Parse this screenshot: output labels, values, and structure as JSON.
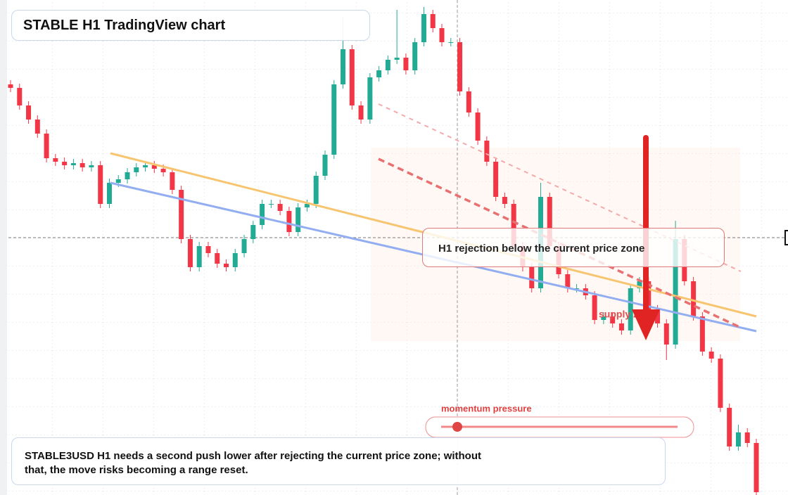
{
  "header": {
    "title": "STABLE H1 TradingView chart"
  },
  "annotation": {
    "text": "H1 rejection below the current price zone",
    "zone_label": "supply zone"
  },
  "slider": {
    "label": "momentum pressure"
  },
  "footer": {
    "text": "STABLE3USD H1 needs a second push lower after rejecting the current price zone; without that, the move risks becoming a range reset."
  },
  "chart_data": {
    "type": "candlestick",
    "ylim": [
      0,
      704
    ],
    "up_color": "#22ab94",
    "down_color": "#f23645",
    "open": [
      584,
      579,
      554,
      534,
      514,
      479,
      474,
      469,
      472,
      466,
      469,
      414,
      444,
      449,
      459,
      466,
      469,
      464,
      459,
      434,
      364,
      324,
      354,
      344,
      329,
      324,
      344,
      364,
      384,
      414,
      414,
      404,
      374,
      409,
      414,
      454,
      484,
      584,
      634,
      554,
      534,
      594,
      604,
      619,
      622,
      604,
      644,
      684,
      664,
      644,
      644,
      574,
      544,
      504,
      474,
      424,
      414,
      354,
      324,
      294,
      424,
      354,
      314,
      294,
      294,
      284,
      249,
      254,
      244,
      234,
      294,
      304,
      264,
      244,
      214,
      364,
      304,
      254,
      204,
      194,
      124,
      69,
      89,
      74
    ],
    "high": [
      590,
      585,
      560,
      540,
      520,
      485,
      480,
      478,
      478,
      475,
      475,
      450,
      455,
      465,
      472,
      475,
      475,
      470,
      465,
      440,
      370,
      360,
      360,
      350,
      335,
      350,
      370,
      390,
      420,
      420,
      420,
      410,
      415,
      420,
      460,
      490,
      590,
      680,
      640,
      560,
      600,
      610,
      625,
      690,
      628,
      650,
      694,
      690,
      670,
      650,
      650,
      580,
      550,
      510,
      480,
      430,
      420,
      360,
      330,
      444,
      430,
      360,
      320,
      300,
      300,
      290,
      260,
      260,
      250,
      300,
      310,
      310,
      270,
      250,
      390,
      370,
      310,
      260,
      210,
      200,
      130,
      100,
      95,
      80
    ],
    "low": [
      573,
      548,
      528,
      508,
      473,
      468,
      463,
      463,
      460,
      460,
      408,
      408,
      438,
      443,
      453,
      460,
      458,
      453,
      428,
      358,
      318,
      318,
      338,
      323,
      318,
      318,
      338,
      358,
      378,
      408,
      398,
      368,
      368,
      403,
      408,
      448,
      478,
      578,
      548,
      528,
      528,
      588,
      598,
      613,
      598,
      598,
      638,
      658,
      638,
      638,
      568,
      538,
      498,
      468,
      418,
      408,
      348,
      318,
      288,
      288,
      348,
      308,
      288,
      288,
      278,
      243,
      243,
      238,
      228,
      228,
      288,
      258,
      238,
      192,
      208,
      298,
      248,
      198,
      188,
      118,
      63,
      63,
      68,
      0
    ],
    "close": [
      579,
      554,
      534,
      514,
      479,
      474,
      469,
      472,
      466,
      469,
      414,
      444,
      449,
      459,
      466,
      469,
      464,
      459,
      434,
      364,
      324,
      354,
      344,
      329,
      324,
      344,
      364,
      384,
      414,
      414,
      404,
      374,
      409,
      414,
      454,
      484,
      584,
      634,
      554,
      534,
      594,
      604,
      619,
      622,
      604,
      644,
      684,
      664,
      644,
      644,
      574,
      544,
      504,
      474,
      424,
      414,
      354,
      324,
      294,
      424,
      354,
      314,
      294,
      294,
      284,
      249,
      254,
      244,
      234,
      294,
      304,
      264,
      244,
      214,
      364,
      304,
      254,
      204,
      194,
      124,
      69,
      89,
      74,
      4
    ]
  }
}
